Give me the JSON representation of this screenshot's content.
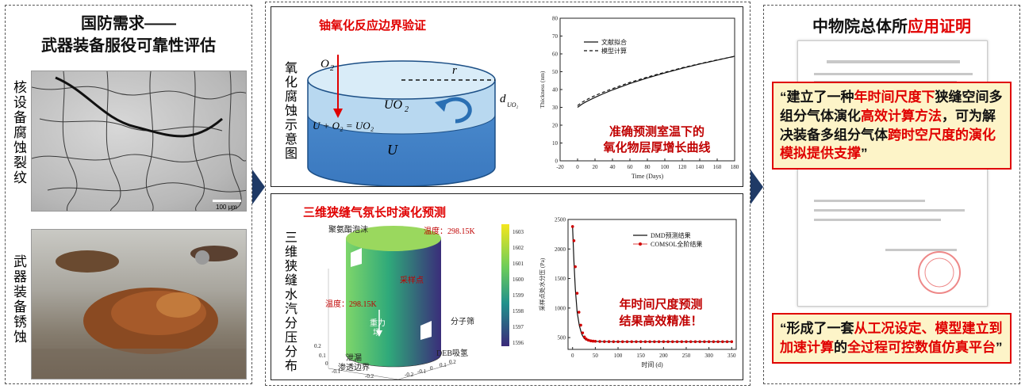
{
  "left": {
    "title_l1": "国防需求——",
    "title_l2": "武器装备服役可靠性评估",
    "label_top": "核设备腐蚀裂纹",
    "label_bottom": "武器装备锈蚀",
    "scalebar": "100 μm"
  },
  "mid_top": {
    "title": "铀氧化反应边界验证",
    "side_label": "氧化腐蚀示意图",
    "o2": "O",
    "o2_sub": "2",
    "r": "r",
    "uo2": "UO",
    "uo2_sub": "2",
    "reaction": "U + O₂ = UO₂",
    "u": "U",
    "d": "d",
    "d_sub": "UO₂",
    "caption_l1": "准确预测室温下的",
    "caption_l2": "氧化物层厚增长曲线"
  },
  "mid_bottom": {
    "title": "三维狭缝气氛长时演化预测",
    "side_label": "三维狭缝水汽分压分布",
    "lbl_foam": "聚氨酯泡沫",
    "lbl_temp_top": "温度：298.15K",
    "lbl_sample": "采样点",
    "lbl_temp_left": "温度：298.15K",
    "lbl_gravity_l1": "重力",
    "lbl_gravity_l2": "场",
    "lbl_sieve": "分子筛",
    "lbl_deb": "DEB吸氢",
    "lbl_boundary_l1": "泄漏",
    "lbl_boundary_l2": "渗透边界",
    "colorbar_ticks": [
      "1603",
      "1602",
      "1601",
      "1600",
      "1599",
      "1598",
      "1597",
      "1596"
    ],
    "axis3d_x": [
      "0.2",
      "0.1",
      "0",
      "-0.1",
      "-0.2"
    ],
    "axis3d_y": [
      "-0.2",
      "-0.1",
      "0",
      "0.1",
      "0.2"
    ],
    "caption_l1": "年时间尺度预测",
    "caption_l2": "结果高效精准！"
  },
  "right": {
    "title_black": "中物院总体所",
    "title_red": "应用证明",
    "quote1": [
      {
        "t": "“建立了一种",
        "r": false
      },
      {
        "t": "年时间尺度下",
        "r": true
      },
      {
        "t": "狭缝空间多组分气体演化",
        "r": false
      },
      {
        "t": "高效计算方法",
        "r": true
      },
      {
        "t": "，可为解决装备多组分气体",
        "r": false
      },
      {
        "t": "跨时空尺度的演化模拟提供支撑",
        "r": true
      },
      {
        "t": "”",
        "r": false
      }
    ],
    "quote2": [
      {
        "t": "“形成了一套",
        "r": false
      },
      {
        "t": "从工况设定、模型建立到加速计算",
        "r": true
      },
      {
        "t": "的",
        "r": false
      },
      {
        "t": "全过程可控数值仿真平台",
        "r": true
      },
      {
        "t": "”",
        "r": false
      }
    ]
  },
  "chart_data": [
    {
      "type": "line",
      "title": "",
      "xlabel": "Time (Days)",
      "ylabel": "Thickness (nm)",
      "xlim": [
        -20,
        180
      ],
      "ylim": [
        0,
        80
      ],
      "xticks": [
        -20,
        0,
        20,
        40,
        60,
        80,
        100,
        120,
        140,
        160,
        180
      ],
      "yticks": [
        0,
        10,
        20,
        30,
        40,
        50,
        60,
        70,
        80
      ],
      "legend": "top-left",
      "series": [
        {
          "name": "文献拟合",
          "style": "solid",
          "x": [
            0,
            5,
            10,
            20,
            30,
            40,
            60,
            80,
            100,
            120,
            140,
            160,
            180
          ],
          "y": [
            30,
            31.8,
            33.2,
            35.6,
            37.8,
            39.8,
            43.4,
            46.5,
            49.3,
            51.9,
            54.3,
            56.5,
            58.7
          ]
        },
        {
          "name": "模型计算",
          "style": "dashed",
          "x": [
            0,
            5,
            10,
            20,
            30,
            40,
            60,
            80,
            100,
            120,
            140,
            160,
            180
          ],
          "y": [
            31,
            32.8,
            34.2,
            36.6,
            38.6,
            40.5,
            44.0,
            47.0,
            49.7,
            52.2,
            54.5,
            56.6,
            58.6
          ]
        }
      ]
    },
    {
      "type": "line",
      "title": "",
      "xlabel": "时间 (d)",
      "ylabel": "采样点处水分压 (Pa)",
      "xlim": [
        -10,
        360
      ],
      "ylim": [
        300,
        2500
      ],
      "xticks": [
        0,
        50,
        100,
        150,
        200,
        250,
        300,
        350
      ],
      "yticks": [
        500,
        1000,
        1500,
        2000,
        2500
      ],
      "legend": "top-right",
      "series": [
        {
          "name": "DMD预测结果",
          "style": "solid",
          "x": [
            0,
            3,
            6,
            10,
            15,
            20,
            25,
            30,
            40,
            50,
            70,
            100,
            150,
            200,
            250,
            300,
            350
          ],
          "y": [
            2380,
            1800,
            1320,
            930,
            700,
            560,
            490,
            460,
            440,
            435,
            432,
            430,
            430,
            430,
            430,
            430,
            430
          ]
        },
        {
          "name": "COMSOL全阶结果",
          "style": "markers",
          "x": [
            0,
            3,
            6,
            10,
            14,
            18,
            22,
            26,
            30,
            35,
            40,
            45,
            50,
            60,
            70,
            80,
            90,
            100,
            110,
            120,
            130,
            140,
            150,
            160,
            170,
            180,
            190,
            200,
            210,
            220,
            230,
            240,
            250,
            260,
            270,
            280,
            290,
            300,
            310,
            320,
            330,
            340,
            350
          ],
          "y": [
            2380,
            2140,
            1700,
            1250,
            930,
            710,
            580,
            510,
            475,
            455,
            445,
            440,
            437,
            434,
            432,
            431,
            430,
            430,
            430,
            430,
            430,
            430,
            430,
            430,
            430,
            430,
            430,
            430,
            430,
            430,
            430,
            430,
            430,
            430,
            430,
            430,
            430,
            430,
            430,
            430,
            430,
            430,
            430
          ]
        }
      ]
    }
  ]
}
